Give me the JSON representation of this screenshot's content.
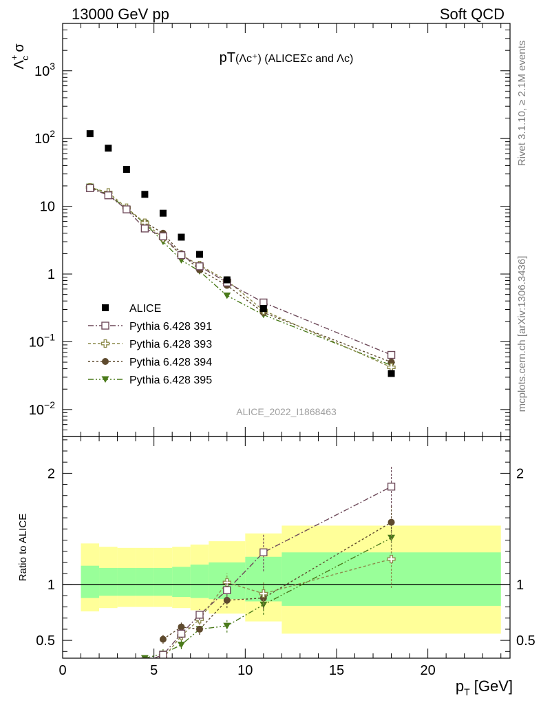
{
  "header": {
    "left": "13000 GeV pp",
    "right": "Soft QCD"
  },
  "plot_title": {
    "main": "pT",
    "rest": "(Λc⁺) (ALICEΣc and Λc)"
  },
  "ylabel_top": {
    "main": "Λ",
    "sup": "+",
    "sub": "c",
    "rest": " σ"
  },
  "ylabel_bottom": "Ratio to ALICE",
  "xlabel": {
    "main": "p",
    "sub": "T",
    "rest": " [GeV]"
  },
  "side_label_upper": "Rivet 3.1.10, ≥ 2.1M events",
  "side_label_lower": "mcplots.cern.ch [arXiv:1306.3436]",
  "watermark": "ALICE_2022_I1868463",
  "colors": {
    "alice": "#000000",
    "p391": "#6e4a5a",
    "p393": "#8c8a4a",
    "p394": "#5e4a2e",
    "p395": "#4a7a1a",
    "band_outer": "#ffff99",
    "band_inner": "#99ff99"
  },
  "chart_data": [
    {
      "type": "scatter",
      "panel": "main",
      "yscale": "log",
      "xlim": [
        0,
        24.5
      ],
      "ylim": [
        0.004,
        5000
      ],
      "y_ticks": [
        {
          "value": 0.01,
          "base": "10",
          "exp": "−2"
        },
        {
          "value": 0.1,
          "base": "10",
          "exp": "−1"
        },
        {
          "value": 1,
          "base": "1",
          "exp": ""
        },
        {
          "value": 10,
          "base": "10",
          "exp": ""
        },
        {
          "value": 100,
          "base": "10",
          "exp": "2"
        },
        {
          "value": 1000,
          "base": "10",
          "exp": "3"
        }
      ],
      "series": [
        {
          "name": "ALICE",
          "key": "alice",
          "marker": "square-filled",
          "x": [
            1.5,
            2.5,
            3.5,
            4.5,
            5.5,
            6.5,
            7.5,
            9,
            11,
            18
          ],
          "y": [
            118,
            72,
            35,
            15,
            7.9,
            3.5,
            1.95,
            0.82,
            0.31,
            0.034
          ]
        },
        {
          "name": "Pythia 6.428 391",
          "key": "p391",
          "marker": "square-open",
          "dash": "8,3,2,3",
          "x": [
            1.5,
            2.5,
            3.5,
            4.5,
            5.5,
            6.5,
            7.5,
            9,
            11,
            18
          ],
          "y": [
            18.5,
            14.5,
            9.0,
            4.7,
            3.6,
            1.9,
            1.3,
            0.75,
            0.38,
            0.064
          ]
        },
        {
          "name": "Pythia 6.428 393",
          "key": "p393",
          "marker": "cross-open",
          "dash": "4,3",
          "x": [
            1.5,
            2.5,
            3.5,
            4.5,
            5.5,
            6.5,
            7.5,
            9,
            11,
            18
          ],
          "y": [
            19,
            16,
            9.5,
            5.7,
            3.4,
            1.9,
            1.35,
            0.8,
            0.29,
            0.042
          ]
        },
        {
          "name": "Pythia 6.428 394",
          "key": "p394",
          "marker": "circle-filled",
          "dash": "3,3",
          "x": [
            1.5,
            2.5,
            3.5,
            4.5,
            5.5,
            6.5,
            7.5,
            9,
            11,
            18
          ],
          "y": [
            19,
            14.8,
            9.0,
            5.8,
            4.0,
            2.0,
            1.15,
            0.68,
            0.27,
            0.05
          ]
        },
        {
          "name": "Pythia 6.428 395",
          "key": "p395",
          "marker": "triangle-down-filled",
          "dash": "8,3,2,3,2,3",
          "x": [
            1.5,
            2.5,
            3.5,
            4.5,
            5.5,
            6.5,
            7.5,
            9,
            11,
            18
          ],
          "y": [
            19.5,
            15,
            9.2,
            5.6,
            3.0,
            1.6,
            1.1,
            0.48,
            0.25,
            0.045
          ]
        }
      ]
    },
    {
      "type": "scatter",
      "panel": "ratio",
      "xlim": [
        0,
        24.5
      ],
      "ylim": [
        0.34,
        2.33
      ],
      "y_ticks": [
        0.5,
        1,
        2
      ],
      "x_ticks": [
        0,
        5,
        10,
        15,
        20
      ],
      "reference_line": 1,
      "bands": {
        "edges": [
          1,
          2,
          3,
          4,
          5,
          6,
          7,
          8,
          10,
          12,
          24
        ],
        "inner_lo": [
          0.88,
          0.9,
          0.9,
          0.9,
          0.9,
          0.89,
          0.88,
          0.87,
          0.85,
          0.81
        ],
        "inner_hi": [
          1.17,
          1.15,
          1.15,
          1.15,
          1.15,
          1.16,
          1.18,
          1.2,
          1.25,
          1.29
        ],
        "outer_lo": [
          0.76,
          0.79,
          0.8,
          0.8,
          0.8,
          0.79,
          0.77,
          0.74,
          0.67,
          0.56
        ],
        "outer_hi": [
          1.37,
          1.34,
          1.33,
          1.33,
          1.33,
          1.34,
          1.36,
          1.39,
          1.46,
          1.53
        ]
      },
      "series": [
        {
          "name": "Pythia 6.428 391",
          "key": "p391",
          "marker": "square-open",
          "dash": "8,3,2,3",
          "x": [
            4.5,
            5.5,
            6.5,
            7.5,
            9,
            11,
            18
          ],
          "y": [
            0.31,
            0.37,
            0.56,
            0.73,
            0.95,
            1.29,
            1.88
          ],
          "err": [
            0,
            0.04,
            0.04,
            0.05,
            0.08,
            0.17,
            0.18
          ]
        },
        {
          "name": "Pythia 6.428 393",
          "key": "p393",
          "marker": "cross-open",
          "dash": "4,3",
          "x": [
            5.5,
            6.5,
            7.5,
            9,
            11,
            18
          ],
          "y": [
            0.34,
            0.54,
            0.69,
            1.02,
            0.92,
            1.23
          ],
          "err": [
            0.04,
            0.04,
            0.05,
            0.08,
            0.1,
            0.26
          ]
        },
        {
          "name": "Pythia 6.428 394",
          "key": "p394",
          "marker": "circle-filled",
          "dash": "3,3",
          "x": [
            5.5,
            6.5,
            7.5,
            9,
            11,
            18
          ],
          "y": [
            0.51,
            0.62,
            0.6,
            0.86,
            0.88,
            1.56
          ],
          "err": [
            0.04,
            0.04,
            0.05,
            0.07,
            0.1,
            0.15
          ]
        },
        {
          "name": "Pythia 6.428 395",
          "key": "p395",
          "marker": "triangle-down-filled",
          "dash": "8,3,2,3,2,3",
          "x": [
            4.5,
            5.5,
            6.5,
            7.5,
            9,
            11,
            18
          ],
          "y": [
            0.34,
            0.38,
            0.46,
            0.6,
            0.63,
            0.82,
            1.42
          ],
          "err": [
            0,
            0.04,
            0.04,
            0.05,
            0.06,
            0.09,
            0.14
          ]
        }
      ]
    }
  ]
}
